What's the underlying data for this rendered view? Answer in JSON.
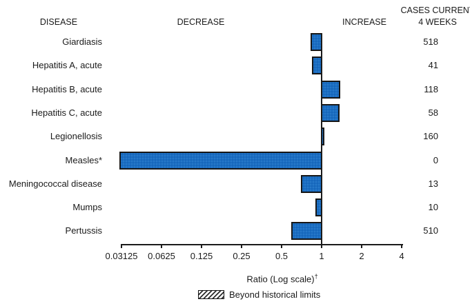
{
  "header": {
    "disease": "DISEASE",
    "decrease": "DECREASE",
    "increase": "INCREASE",
    "cases_line1": "CASES CURRENT",
    "cases_line2": "4 WEEKS"
  },
  "chart_data": {
    "type": "bar",
    "orientation": "horizontal",
    "x_scale": "log2",
    "baseline_ratio": 1,
    "x_range": [
      0.03125,
      4
    ],
    "x_axis_label": "Ratio (Log scale)",
    "x_axis_label_superscript": "†",
    "tick_values": [
      0.03125,
      0.0625,
      0.125,
      0.25,
      0.5,
      1,
      2,
      4
    ],
    "tick_labels": [
      "0.03125",
      "0.0625",
      "0.125",
      "0.25",
      "0.5",
      "1",
      "2",
      "4"
    ],
    "rows": [
      {
        "disease": "Giardiasis",
        "ratio": 0.83,
        "cases_current_4_weeks": "518"
      },
      {
        "disease": "Hepatitis A, acute",
        "ratio": 0.85,
        "cases_current_4_weeks": "41"
      },
      {
        "disease": "Hepatitis B, acute",
        "ratio": 1.38,
        "cases_current_4_weeks": "118"
      },
      {
        "disease": "Hepatitis C, acute",
        "ratio": 1.36,
        "cases_current_4_weeks": "58"
      },
      {
        "disease": "Legionellosis",
        "ratio": 1.05,
        "cases_current_4_weeks": "160"
      },
      {
        "disease": "Measles*",
        "ratio": 0.03,
        "cases_current_4_weeks": "0"
      },
      {
        "disease": "Meningococcal disease",
        "ratio": 0.7,
        "cases_current_4_weeks": "13"
      },
      {
        "disease": "Mumps",
        "ratio": 0.9,
        "cases_current_4_weeks": "10"
      },
      {
        "disease": "Pertussis",
        "ratio": 0.59,
        "cases_current_4_weeks": "510"
      }
    ],
    "legend": [
      {
        "swatch": "hatched",
        "label": "Beyond historical limits"
      }
    ]
  },
  "colors": {
    "bar_fill": "#1b6ec2",
    "bar_dot": "#0b4fa0",
    "bar_border": "#161616",
    "axis": "#1a1a1a",
    "text": "#1a1a1a"
  }
}
